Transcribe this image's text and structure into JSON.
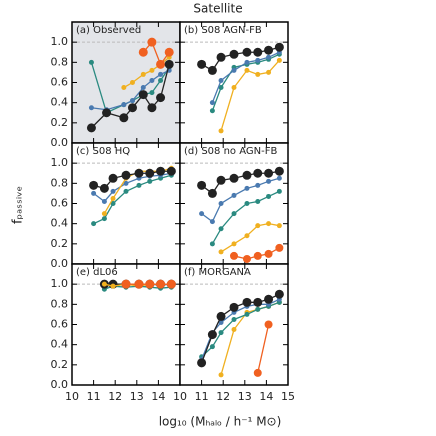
{
  "title": "Satellite",
  "xlabel": "log₁₀ (Mₕₐₗₒ / h⁻¹ M⊙)",
  "ylabel": "fₚₐₛₛᵢᵥₑ",
  "chart_data": [
    {
      "type": "line",
      "title": "(a) Observed",
      "background": "#e3e5e9",
      "hline": 1.0,
      "x": [
        10.9,
        11.6,
        12.4,
        12.8,
        13.3,
        13.7,
        14.1,
        14.5
      ],
      "xlim": [
        10,
        15
      ],
      "xticks": [
        10,
        11,
        12,
        13,
        14,
        15
      ],
      "ylim": [
        0,
        1.2
      ],
      "yticks": [
        {
          "value": 0,
          "label": "0.0"
        },
        {
          "value": 0.2,
          "label": "0.2"
        },
        {
          "value": 0.4,
          "label": "0.4"
        },
        {
          "value": 0.6,
          "label": "0.6"
        },
        {
          "value": 0.8,
          "label": "0.8"
        },
        {
          "value": 1.0,
          "label": "1.0"
        }
      ],
      "series": [
        {
          "color": "#2a8a80",
          "marker_size": 2.5,
          "values": [
            0.8,
            0.3,
            0.38,
            0.42,
            0.48,
            0.5,
            0.62,
            0.75
          ]
        },
        {
          "color": "#4a7ab0",
          "marker_size": 2.5,
          "values": [
            0.35,
            0.33,
            0.38,
            0.42,
            0.55,
            0.62,
            0.68,
            0.72
          ]
        },
        {
          "color": "#f0b020",
          "marker_size": 2.5,
          "values": [
            null,
            null,
            0.55,
            0.6,
            0.68,
            0.72,
            0.78,
            0.85
          ]
        },
        {
          "color": "#f06020",
          "marker_size": 4.5,
          "values": [
            null,
            null,
            null,
            null,
            0.9,
            1.0,
            0.78,
            0.9
          ]
        },
        {
          "color": "#222222",
          "marker_size": 4.5,
          "values": [
            0.15,
            0.3,
            0.25,
            0.35,
            0.48,
            0.35,
            0.45,
            0.78
          ]
        }
      ]
    },
    {
      "type": "line",
      "title": "(b) S08 AGN-FB",
      "hline": 1.0,
      "x": [
        11.0,
        11.5,
        11.9,
        12.5,
        13.1,
        13.6,
        14.1,
        14.6
      ],
      "xlim": [
        10,
        15
      ],
      "xticks": [
        10,
        11,
        12,
        13,
        14,
        15
      ],
      "ylim": [
        0,
        1.2
      ],
      "yticks": [
        0,
        0.2,
        0.4,
        0.6,
        0.8,
        1.0
      ],
      "series": [
        {
          "color": "#f0b020",
          "marker_size": 2.5,
          "values": [
            null,
            null,
            0.12,
            0.55,
            0.72,
            0.68,
            0.7,
            0.82
          ]
        },
        {
          "color": "#2a8a80",
          "marker_size": 2.5,
          "values": [
            null,
            0.32,
            0.55,
            0.75,
            0.78,
            0.8,
            0.83,
            0.88
          ]
        },
        {
          "color": "#4a7ab0",
          "marker_size": 2.5,
          "values": [
            null,
            0.4,
            0.62,
            0.72,
            0.8,
            0.82,
            0.85,
            0.9
          ]
        },
        {
          "color": "#222222",
          "marker_size": 4.5,
          "values": [
            0.78,
            0.72,
            0.85,
            0.88,
            0.9,
            0.9,
            0.92,
            0.95
          ]
        }
      ]
    },
    {
      "type": "line",
      "title": "(c) S08 HQ",
      "hline": 1.0,
      "x": [
        11.0,
        11.5,
        11.9,
        12.5,
        13.1,
        13.6,
        14.1,
        14.6
      ],
      "xlim": [
        10,
        15
      ],
      "xticks": [
        10,
        11,
        12,
        13,
        14,
        15
      ],
      "ylim": [
        0,
        1.2
      ],
      "yticks": [
        {
          "value": 0,
          "label": "0.0"
        },
        {
          "value": 0.2,
          "label": "0.2"
        },
        {
          "value": 0.4,
          "label": "0.4"
        },
        {
          "value": 0.6,
          "label": "0.6"
        },
        {
          "value": 0.8,
          "label": "0.8"
        },
        {
          "value": 1.0,
          "label": "1.0"
        }
      ],
      "series": [
        {
          "color": "#2a8a80",
          "marker_size": 2.5,
          "values": [
            0.4,
            0.45,
            0.6,
            0.72,
            0.78,
            0.82,
            0.85,
            0.88
          ]
        },
        {
          "color": "#4a7ab0",
          "marker_size": 2.5,
          "values": [
            0.7,
            0.62,
            0.72,
            0.8,
            0.85,
            0.87,
            0.88,
            0.9
          ]
        },
        {
          "color": "#f0b020",
          "marker_size": 2.5,
          "values": [
            null,
            0.5,
            0.65,
            0.85,
            0.92,
            0.92,
            0.92,
            0.95
          ]
        },
        {
          "color": "#222222",
          "marker_size": 4.5,
          "values": [
            0.78,
            0.75,
            0.85,
            0.88,
            0.9,
            0.9,
            0.92,
            0.92
          ]
        }
      ]
    },
    {
      "type": "line",
      "title": "(d) S08 no AGN-FB",
      "hline": 1.0,
      "x": [
        11.0,
        11.5,
        11.9,
        12.5,
        13.1,
        13.6,
        14.1,
        14.6
      ],
      "xlim": [
        10,
        15
      ],
      "xticks": [
        10,
        11,
        12,
        13,
        14,
        15
      ],
      "ylim": [
        0,
        1.2
      ],
      "yticks": [
        0,
        0.2,
        0.4,
        0.6,
        0.8,
        1.0
      ],
      "series": [
        {
          "color": "#f06020",
          "marker_size": 4,
          "values": [
            null,
            null,
            null,
            0.08,
            0.05,
            0.08,
            0.1,
            0.16
          ]
        },
        {
          "color": "#f0b020",
          "marker_size": 2.5,
          "values": [
            null,
            null,
            0.12,
            0.2,
            0.28,
            0.38,
            0.4,
            0.38
          ]
        },
        {
          "color": "#2a8a80",
          "marker_size": 2.5,
          "values": [
            null,
            0.2,
            0.35,
            0.5,
            0.6,
            0.62,
            0.67,
            0.72
          ]
        },
        {
          "color": "#4a7ab0",
          "marker_size": 2.5,
          "values": [
            0.5,
            0.42,
            0.6,
            0.68,
            0.75,
            0.78,
            0.82,
            0.85
          ]
        },
        {
          "color": "#222222",
          "marker_size": 4.5,
          "values": [
            0.78,
            0.7,
            0.83,
            0.85,
            0.88,
            0.9,
            0.9,
            0.92
          ]
        }
      ]
    },
    {
      "type": "line",
      "title": "(e) dL06",
      "hline": 1.0,
      "x": [
        11.0,
        11.5,
        11.9,
        12.5,
        13.1,
        13.6,
        14.1,
        14.6
      ],
      "xlim": [
        10,
        15
      ],
      "xticks": [
        10,
        11,
        12,
        13,
        14
      ],
      "ylim": [
        0,
        1.2
      ],
      "yticks": [
        {
          "value": 0,
          "label": "0.0"
        },
        {
          "value": 0.2,
          "label": "0.2"
        },
        {
          "value": 0.4,
          "label": "0.4"
        },
        {
          "value": 0.6,
          "label": "0.6"
        },
        {
          "value": 0.8,
          "label": "0.8"
        },
        {
          "value": 1.0,
          "label": "1.0"
        }
      ],
      "series": [
        {
          "color": "#2a8a80",
          "marker_size": 2.5,
          "values": [
            null,
            0.95,
            0.98,
            0.97,
            0.98,
            0.97,
            0.96,
            0.97
          ]
        },
        {
          "color": "#4a7ab0",
          "marker_size": 2.5,
          "values": [
            null,
            0.98,
            0.99,
            1.0,
            1.0,
            1.0,
            0.99,
            1.0
          ]
        },
        {
          "color": "#222222",
          "marker_size": 4.5,
          "values": [
            null,
            1.0,
            1.0,
            1.0,
            1.0,
            1.0,
            1.0,
            1.0
          ]
        },
        {
          "color": "#f0b020",
          "marker_size": 2.5,
          "values": [
            null,
            1.0,
            0.98,
            1.0,
            0.98,
            1.0,
            1.0,
            1.0
          ]
        },
        {
          "color": "#f06020",
          "marker_size": 4.5,
          "values": [
            null,
            null,
            null,
            1.0,
            1.0,
            1.0,
            1.0,
            1.0
          ]
        }
      ]
    },
    {
      "type": "line",
      "title": "(f) MORGANA",
      "hline": 1.0,
      "x": [
        11.0,
        11.5,
        11.9,
        12.5,
        13.1,
        13.6,
        14.1,
        14.6
      ],
      "xlim": [
        10,
        15
      ],
      "xticks": [
        10,
        11,
        12,
        13,
        14,
        15
      ],
      "ylim": [
        0,
        1.2
      ],
      "yticks": [
        0,
        0.2,
        0.4,
        0.6,
        0.8,
        1.0
      ],
      "series": [
        {
          "color": "#f06020",
          "marker_size": 4,
          "values": [
            null,
            null,
            null,
            null,
            null,
            0.12,
            0.6,
            null
          ]
        },
        {
          "color": "#f0b020",
          "marker_size": 2.5,
          "values": [
            null,
            null,
            0.1,
            0.55,
            0.72,
            0.75,
            0.78,
            0.82
          ]
        },
        {
          "color": "#2a8a80",
          "marker_size": 2.5,
          "values": [
            0.28,
            0.38,
            0.52,
            0.65,
            0.7,
            0.75,
            0.78,
            0.82
          ]
        },
        {
          "color": "#4a7ab0",
          "marker_size": 2.5,
          "values": [
            0.25,
            0.52,
            0.62,
            0.72,
            0.78,
            0.8,
            0.8,
            0.85
          ]
        },
        {
          "color": "#222222",
          "marker_size": 4.5,
          "values": [
            0.22,
            0.5,
            0.68,
            0.77,
            0.82,
            0.82,
            0.85,
            0.9
          ]
        }
      ]
    }
  ]
}
